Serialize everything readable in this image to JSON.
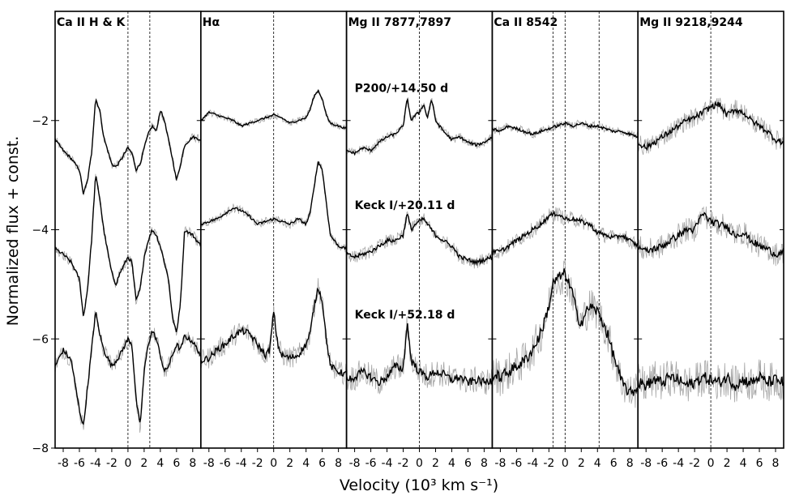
{
  "chart_data": {
    "type": "line",
    "xlabel": "Velocity (10³ km s⁻¹)",
    "ylabel": "Normalized flux + const.",
    "xlim": [
      -9,
      9
    ],
    "ylim": [
      -8,
      0
    ],
    "x_ticks": [
      -8,
      -6,
      -4,
      -2,
      0,
      2,
      4,
      6,
      8
    ],
    "x_tick_labels": [
      "-8",
      "-6",
      "-4",
      "-2",
      "0",
      "2",
      "4",
      "6",
      "8"
    ],
    "y_ticks": [
      -2,
      -4,
      -6,
      -8
    ],
    "y_tick_labels": [
      "−2",
      "−4",
      "−6",
      "−8"
    ],
    "panels": [
      {
        "title": "Ca II H & K",
        "dashed_velocities": [
          0,
          2.7
        ],
        "spectra": [
          {
            "x": [
              -9,
              -8,
              -7,
              -6,
              -5.5,
              -5,
              -4.5,
              -4,
              -3.5,
              -3,
              -2,
              -1.5,
              -1,
              0,
              0.5,
              1,
              1.5,
              2,
              2.5,
              3,
              3.5,
              4,
              4.5,
              5,
              5.5,
              6,
              6.5,
              7,
              8,
              9
            ],
            "y": [
              -2.35,
              -2.55,
              -2.7,
              -2.9,
              -3.35,
              -3.1,
              -2.6,
              -1.6,
              -1.8,
              -2.3,
              -2.8,
              -2.85,
              -2.75,
              -2.5,
              -2.6,
              -2.9,
              -2.8,
              -2.5,
              -2.25,
              -2.1,
              -2.2,
              -1.8,
              -2.0,
              -2.35,
              -2.7,
              -3.1,
              -2.8,
              -2.45,
              -2.3,
              -2.35
            ]
          },
          {
            "x": [
              -9,
              -8,
              -7,
              -6,
              -5.5,
              -5,
              -4.5,
              -4,
              -3.5,
              -3,
              -2,
              -1.5,
              -1,
              0,
              0.5,
              1,
              1.5,
              2,
              2.5,
              3,
              3.5,
              4,
              4.5,
              5,
              5.5,
              6,
              6.5,
              7,
              8,
              9
            ],
            "y": [
              -4.35,
              -4.45,
              -4.6,
              -4.9,
              -5.6,
              -5.1,
              -4.2,
              -3.0,
              -3.4,
              -4.0,
              -4.8,
              -5.0,
              -4.8,
              -4.5,
              -4.6,
              -5.3,
              -5.1,
              -4.5,
              -4.2,
              -4.0,
              -4.1,
              -4.3,
              -4.6,
              -4.9,
              -5.6,
              -5.9,
              -5.3,
              -4.0,
              -4.1,
              -4.3
            ]
          },
          {
            "x": [
              -9,
              -8,
              -7,
              -6,
              -5.5,
              -5,
              -4.5,
              -4,
              -3.5,
              -3,
              -2,
              -1.5,
              -1,
              0,
              0.5,
              1,
              1.5,
              2,
              2.5,
              3,
              3.5,
              4,
              4.5,
              5,
              5.5,
              6,
              6.5,
              7,
              8,
              9
            ],
            "y": [
              -6.5,
              -6.2,
              -6.4,
              -7.3,
              -7.6,
              -6.9,
              -6.2,
              -5.5,
              -5.9,
              -6.2,
              -6.5,
              -6.4,
              -6.3,
              -6.0,
              -6.1,
              -7.1,
              -7.6,
              -6.6,
              -6.1,
              -5.85,
              -6.0,
              -6.3,
              -6.6,
              -6.5,
              -6.3,
              -6.1,
              -6.2,
              -5.95,
              -6.05,
              -6.3
            ]
          }
        ]
      },
      {
        "title": "Hα",
        "dashed_velocities": [
          0
        ],
        "spectra": [
          {
            "x": [
              -9,
              -8,
              -7,
              -6,
              -5,
              -4,
              -3,
              -2,
              -1,
              0,
              1,
              2,
              3,
              4,
              4.5,
              5,
              5.5,
              6,
              6.5,
              7,
              8,
              9
            ],
            "y": [
              -2.0,
              -1.85,
              -1.9,
              -1.95,
              -2.0,
              -2.1,
              -2.05,
              -2.0,
              -1.95,
              -1.9,
              -1.95,
              -2.05,
              -2.0,
              -1.95,
              -1.8,
              -1.55,
              -1.45,
              -1.6,
              -1.9,
              -2.05,
              -2.1,
              -2.15
            ]
          },
          {
            "x": [
              -9,
              -8,
              -7,
              -6,
              -5,
              -4,
              -3,
              -2,
              -1,
              0,
              1,
              2,
              3,
              4,
              4.5,
              5,
              5.5,
              6,
              6.5,
              7,
              8,
              9
            ],
            "y": [
              -3.9,
              -3.85,
              -3.8,
              -3.7,
              -3.6,
              -3.65,
              -3.75,
              -3.9,
              -3.85,
              -3.8,
              -3.85,
              -3.9,
              -3.8,
              -3.9,
              -3.7,
              -3.2,
              -2.75,
              -2.9,
              -3.5,
              -4.1,
              -4.3,
              -4.35
            ]
          },
          {
            "x": [
              -9,
              -8,
              -7,
              -6,
              -5,
              -4,
              -3,
              -2,
              -1,
              -0.5,
              0,
              0.5,
              1,
              2,
              3,
              4,
              4.5,
              5,
              5.5,
              6,
              6.5,
              7,
              8,
              9
            ],
            "y": [
              -6.4,
              -6.35,
              -6.2,
              -6.1,
              -5.95,
              -5.85,
              -5.9,
              -6.1,
              -6.3,
              -6.2,
              -5.5,
              -6.1,
              -6.3,
              -6.35,
              -6.3,
              -6.1,
              -5.9,
              -5.4,
              -5.05,
              -5.3,
              -6.0,
              -6.5,
              -6.6,
              -6.65
            ]
          }
        ]
      },
      {
        "title": "Mg II 7877,7897",
        "dashed_velocities": [
          0
        ],
        "spectra": [
          {
            "x": [
              -9,
              -8,
              -7,
              -6,
              -5,
              -4,
              -3,
              -2,
              -1.5,
              -1,
              -0.5,
              0,
              0.5,
              1,
              1.5,
              2,
              3,
              4,
              5,
              6,
              7,
              8,
              9
            ],
            "y": [
              -2.55,
              -2.6,
              -2.5,
              -2.55,
              -2.4,
              -2.3,
              -2.25,
              -2.1,
              -1.6,
              -2.0,
              -1.9,
              -1.85,
              -1.7,
              -1.95,
              -1.6,
              -2.0,
              -2.2,
              -2.35,
              -2.3,
              -2.4,
              -2.45,
              -2.4,
              -2.3
            ]
          },
          {
            "x": [
              -9,
              -8,
              -7,
              -6,
              -5,
              -4,
              -3,
              -2,
              -1.5,
              -1,
              -0.5,
              0,
              0.5,
              1,
              2,
              3,
              4,
              5,
              6,
              7,
              8,
              9
            ],
            "y": [
              -4.45,
              -4.5,
              -4.45,
              -4.4,
              -4.3,
              -4.2,
              -4.2,
              -4.1,
              -3.7,
              -4.0,
              -3.9,
              -3.85,
              -3.8,
              -3.9,
              -4.1,
              -4.2,
              -4.3,
              -4.5,
              -4.55,
              -4.6,
              -4.55,
              -4.5
            ]
          },
          {
            "x": [
              -9,
              -8,
              -7,
              -6,
              -5,
              -4,
              -3,
              -2,
              -1.5,
              -1,
              0,
              1,
              2,
              3,
              4,
              5,
              6,
              7,
              8,
              9
            ],
            "y": [
              -6.75,
              -6.7,
              -6.6,
              -6.7,
              -6.8,
              -6.7,
              -6.5,
              -6.55,
              -5.7,
              -6.4,
              -6.6,
              -6.7,
              -6.6,
              -6.65,
              -6.75,
              -6.7,
              -6.8,
              -6.75,
              -6.8,
              -6.75
            ]
          }
        ]
      },
      {
        "title": "Ca II 8542",
        "dashed_velocities": [
          -1.5,
          0,
          4.2
        ],
        "spectra": [
          {
            "x": [
              -9,
              -8,
              -7,
              -6,
              -5,
              -4,
              -3,
              -2,
              -1,
              0,
              1,
              2,
              3,
              4,
              5,
              6,
              7,
              8,
              9
            ],
            "y": [
              -2.15,
              -2.2,
              -2.1,
              -2.15,
              -2.2,
              -2.25,
              -2.2,
              -2.15,
              -2.1,
              -2.05,
              -2.1,
              -2.05,
              -2.1,
              -2.1,
              -2.15,
              -2.2,
              -2.2,
              -2.25,
              -2.3
            ]
          },
          {
            "x": [
              -9,
              -8,
              -7,
              -6,
              -5,
              -4,
              -3,
              -2,
              -1,
              0,
              1,
              2,
              3,
              4,
              5,
              6,
              7,
              8,
              9
            ],
            "y": [
              -4.4,
              -4.4,
              -4.3,
              -4.2,
              -4.1,
              -4.0,
              -3.9,
              -3.75,
              -3.7,
              -3.8,
              -3.8,
              -3.85,
              -3.9,
              -4.05,
              -4.1,
              -4.15,
              -4.1,
              -4.2,
              -4.3
            ]
          },
          {
            "x": [
              -9,
              -8,
              -7,
              -6,
              -5,
              -4,
              -3,
              -2,
              -1.5,
              -1,
              0,
              1,
              1.5,
              2,
              3,
              4,
              5,
              6,
              7,
              8,
              9
            ],
            "y": [
              -6.65,
              -6.7,
              -6.6,
              -6.5,
              -6.4,
              -6.2,
              -5.9,
              -5.4,
              -5.0,
              -4.9,
              -4.8,
              -5.2,
              -5.6,
              -5.7,
              -5.4,
              -5.5,
              -5.8,
              -6.3,
              -6.8,
              -7.0,
              -6.9
            ]
          }
        ]
      },
      {
        "title": "Mg II 9218,9244",
        "dashed_velocities": [
          0
        ],
        "spectra": [
          {
            "x": [
              -9,
              -8,
              -7,
              -6,
              -5,
              -4,
              -3,
              -2,
              -1,
              0,
              1,
              2,
              3,
              4,
              5,
              6,
              7,
              8,
              9
            ],
            "y": [
              -2.4,
              -2.5,
              -2.4,
              -2.3,
              -2.2,
              -2.1,
              -2.0,
              -1.95,
              -1.85,
              -1.75,
              -1.7,
              -1.9,
              -1.8,
              -1.85,
              -2.0,
              -2.1,
              -2.2,
              -2.35,
              -2.4
            ]
          },
          {
            "x": [
              -9,
              -8,
              -7,
              -6,
              -5,
              -4,
              -3,
              -2,
              -1,
              0,
              1,
              2,
              3,
              4,
              5,
              6,
              7,
              8,
              9
            ],
            "y": [
              -4.3,
              -4.4,
              -4.35,
              -4.3,
              -4.2,
              -4.1,
              -4.0,
              -4.0,
              -3.7,
              -3.85,
              -3.9,
              -3.95,
              -4.1,
              -4.05,
              -4.2,
              -4.3,
              -4.35,
              -4.45,
              -4.4
            ]
          },
          {
            "x": [
              -9,
              -8,
              -7,
              -6,
              -5,
              -4,
              -3,
              -2,
              -1,
              0,
              1,
              2,
              3,
              4,
              5,
              6,
              7,
              8,
              9
            ],
            "y": [
              -6.8,
              -6.85,
              -6.75,
              -6.8,
              -6.7,
              -6.75,
              -6.85,
              -6.8,
              -6.7,
              -6.75,
              -6.8,
              -6.7,
              -6.85,
              -6.75,
              -6.8,
              -6.7,
              -6.8,
              -6.75,
              -6.8
            ]
          }
        ]
      }
    ],
    "spectrum_labels": [
      {
        "text": "P200/+14.50 d",
        "y": -1.4
      },
      {
        "text": "Keck I/+20.11 d",
        "y": -3.55
      },
      {
        "text": "Keck I/+52.18 d",
        "y": -5.55
      }
    ]
  }
}
